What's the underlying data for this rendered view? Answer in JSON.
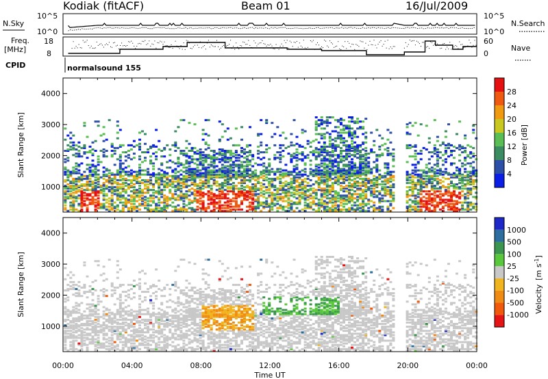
{
  "header": {
    "station": "Kodiak (fitACF)",
    "beam": "Beam 01",
    "date": "16/Jul/2009"
  },
  "panels": {
    "nsky": {
      "label": "N.Sky",
      "ticks": [
        "10^5",
        "10^0"
      ],
      "right_label": "N.Search",
      "right_ticks": [
        "10^5",
        "10^0"
      ]
    },
    "freq": {
      "label_line1": "Freq.",
      "label_line2": "[MHz]",
      "ticks": [
        "18",
        "8"
      ],
      "right_label": "Nave",
      "right_ticks": [
        "60",
        "0"
      ]
    },
    "cpid": {
      "label": "CPID",
      "mode_text": "normalsound 155"
    }
  },
  "chart_data": [
    {
      "type": "heatmap",
      "title": "",
      "xlabel": "",
      "ylabel": "Slant Range [km]",
      "xlim": [
        "00:00",
        "24:00"
      ],
      "ylim": [
        180,
        4500
      ],
      "x_ticks": [
        "00:00",
        "04:00",
        "08:00",
        "12:00",
        "16:00",
        "20:00",
        "00:00"
      ],
      "y_ticks": [
        1000,
        2000,
        3000,
        4000
      ],
      "colorbar": {
        "label": "Power [dB]",
        "ticks": [
          4,
          8,
          12,
          16,
          20,
          24,
          28
        ],
        "range": [
          0,
          30
        ],
        "colors": [
          "#0a1ee6",
          "#2d4fa8",
          "#3c8c62",
          "#5abe55",
          "#c8c820",
          "#f09a12",
          "#f05a10",
          "#e61010"
        ]
      },
      "data_gap": [
        "19:15",
        "19:45"
      ]
    },
    {
      "type": "heatmap",
      "title": "",
      "xlabel": "Time UT",
      "ylabel": "Slant Range [km]",
      "xlim": [
        "00:00",
        "24:00"
      ],
      "ylim": [
        180,
        4500
      ],
      "x_ticks": [
        "00:00",
        "04:00",
        "08:00",
        "12:00",
        "16:00",
        "20:00",
        "00:00"
      ],
      "y_ticks": [
        1000,
        2000,
        3000,
        4000
      ],
      "colorbar": {
        "label": "Velocity",
        "unit": "[m s",
        "unit_exp": "-1",
        "unit_close": "]",
        "ticks": [
          1000,
          500,
          100,
          25,
          -25,
          -100,
          -500,
          -1000
        ],
        "colors": [
          "#1e28c8",
          "#2d6ea0",
          "#3c9650",
          "#5ac83c",
          "#c8c8c8",
          "#f0b41e",
          "#f08c14",
          "#f05a0a",
          "#e61414"
        ]
      },
      "data_gap": [
        "19:15",
        "19:45"
      ]
    }
  ]
}
